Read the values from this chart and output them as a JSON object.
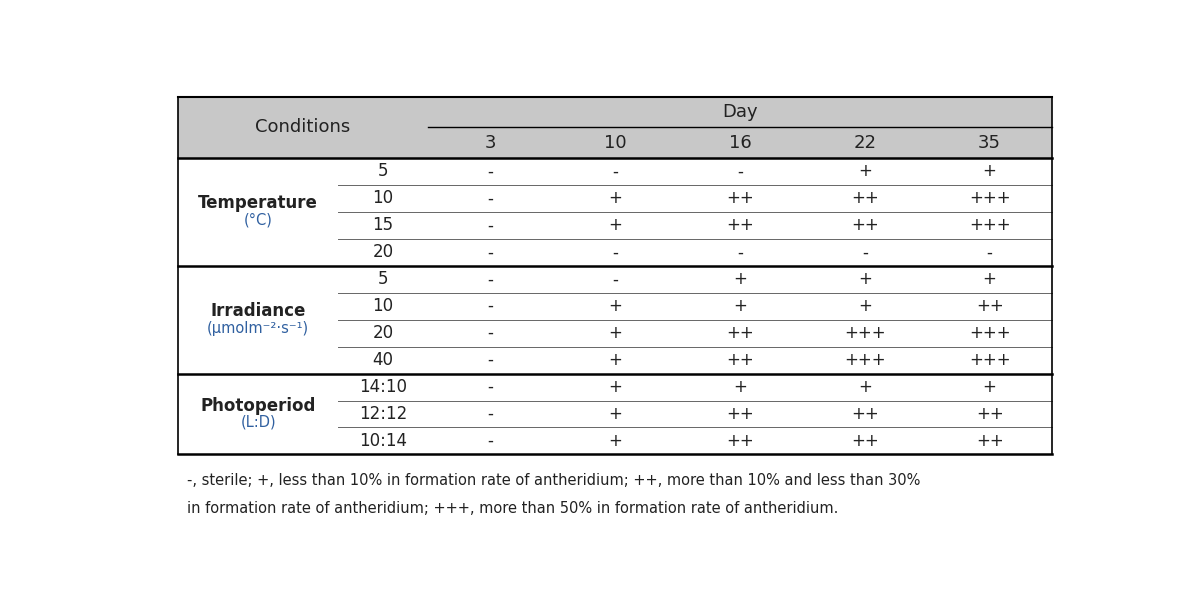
{
  "header_bg_color": "#c8c8c8",
  "header_day_label": "Day",
  "header_conditions_label": "Conditions",
  "day_cols": [
    "3",
    "10",
    "16",
    "22",
    "35"
  ],
  "groups": [
    {
      "group_label_line1": "Temperature",
      "group_label_line2": "(°C)",
      "sub_labels": [
        "5",
        "10",
        "15",
        "20"
      ],
      "data": [
        [
          "-",
          "-",
          "-",
          "+",
          "+"
        ],
        [
          "-",
          "+",
          "++",
          "++",
          "+++"
        ],
        [
          "-",
          "+",
          "++",
          "++",
          "+++"
        ],
        [
          "-",
          "-",
          "-",
          "-",
          "-"
        ]
      ]
    },
    {
      "group_label_line1": "Irradiance",
      "group_label_line2": "(μmolm⁻²·s⁻¹)",
      "sub_labels": [
        "5",
        "10",
        "20",
        "40"
      ],
      "data": [
        [
          "-",
          "-",
          "+",
          "+",
          "+"
        ],
        [
          "-",
          "+",
          "+",
          "+",
          "++"
        ],
        [
          "-",
          "+",
          "++",
          "+++",
          "+++"
        ],
        [
          "-",
          "+",
          "++",
          "+++",
          "+++"
        ]
      ]
    },
    {
      "group_label_line1": "Photoperiod",
      "group_label_line2": "(L:D)",
      "sub_labels": [
        "14:10",
        "12:12",
        "10:14"
      ],
      "data": [
        [
          "-",
          "+",
          "+",
          "+",
          "+"
        ],
        [
          "-",
          "+",
          "++",
          "++",
          "++"
        ],
        [
          "-",
          "+",
          "++",
          "++",
          "++"
        ]
      ]
    }
  ],
  "footnote_line1": "-, sterile; +, less than 10% in formation rate of antheridium; ++, more than 10% and less than 30%",
  "footnote_line2": "in formation rate of antheridium; +++, more than 50% in formation rate of antheridium.",
  "text_color": "#222222",
  "blue_label_color": "#3060a0",
  "figsize": [
    12.0,
    6.11
  ],
  "dpi": 100
}
